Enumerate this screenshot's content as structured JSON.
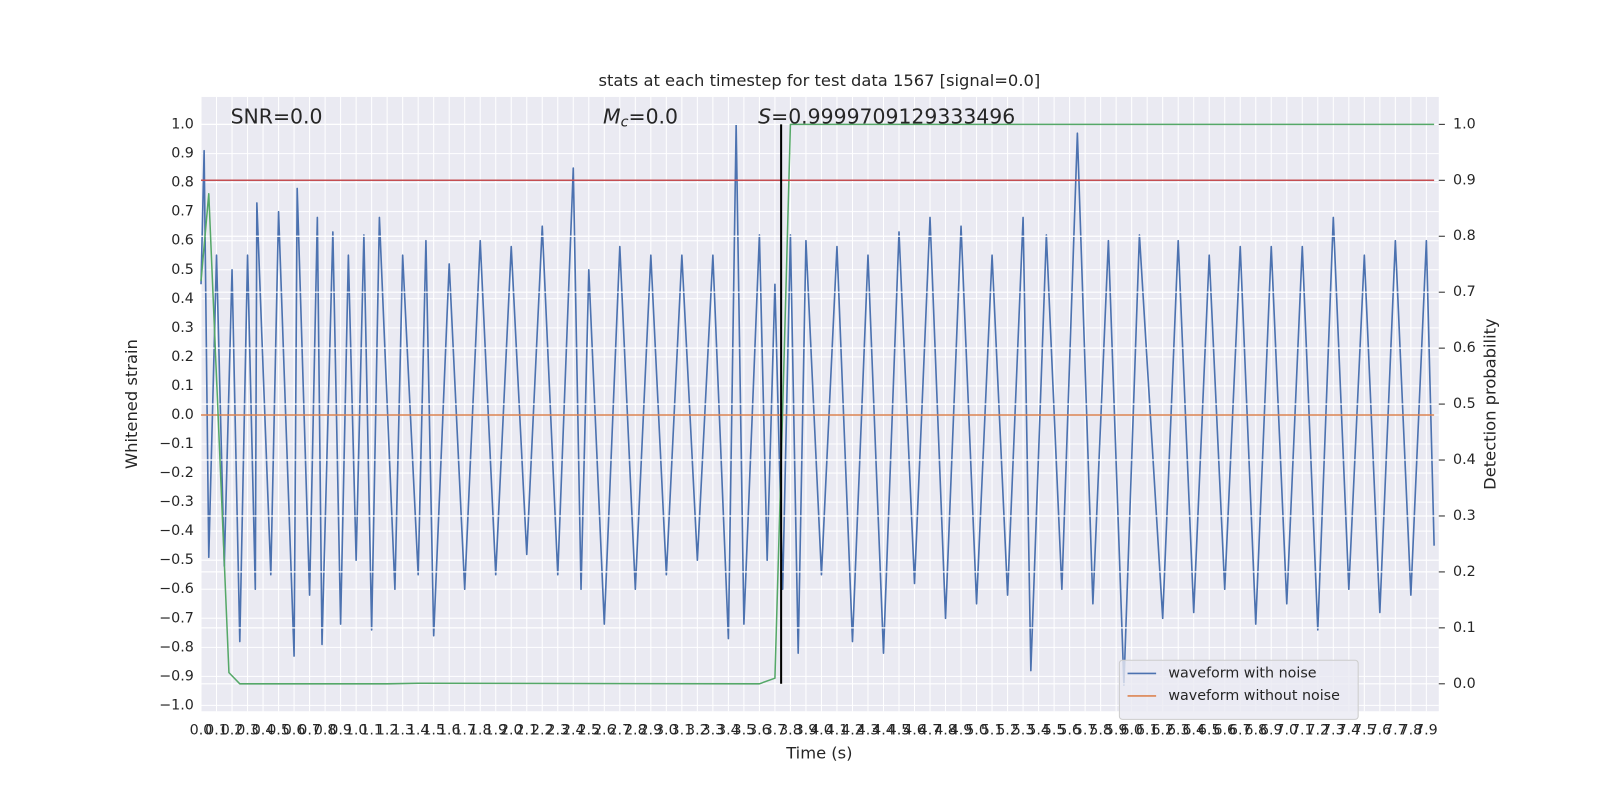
{
  "chart_data": {
    "type": "line",
    "title": "stats at each timestep for test data 1567 [signal=0.0]",
    "xlabel": "Time (s)",
    "ylabel": "Whitened strain",
    "y2label": "Detection probability",
    "annotations": [
      {
        "text": "SNR=0.0"
      },
      {
        "symbol": "M",
        "sub": "c",
        "text": "=0.0"
      },
      {
        "symbol": "S",
        "text": "=0.9999709129333496"
      }
    ],
    "xlim": [
      0,
      7.98
    ],
    "ylim": [
      -1.02,
      1.095
    ],
    "y2lim": [
      -0.049,
      1.049
    ],
    "xticks": [
      {
        "value": 0,
        "label": "0.0"
      },
      {
        "value": 0.1,
        "label": "0.1"
      },
      {
        "value": 0.2,
        "label": "0.2"
      },
      {
        "value": 0.3,
        "label": "0.3"
      },
      {
        "value": 0.4,
        "label": "0.4"
      },
      {
        "value": 0.5,
        "label": "0.5"
      },
      {
        "value": 0.6,
        "label": "0.6"
      },
      {
        "value": 0.7,
        "label": "0.7"
      },
      {
        "value": 0.8,
        "label": "0.8"
      },
      {
        "value": 0.9,
        "label": "0.9"
      },
      {
        "value": 1,
        "label": "1.0"
      },
      {
        "value": 1.1,
        "label": "1.1"
      },
      {
        "value": 1.2,
        "label": "1.2"
      },
      {
        "value": 1.3,
        "label": "1.3"
      },
      {
        "value": 1.4,
        "label": "1.4"
      },
      {
        "value": 1.5,
        "label": "1.5"
      },
      {
        "value": 1.6,
        "label": "1.6"
      },
      {
        "value": 1.7,
        "label": "1.7"
      },
      {
        "value": 1.8,
        "label": "1.8"
      },
      {
        "value": 1.9,
        "label": "1.9"
      },
      {
        "value": 2,
        "label": "2.0"
      },
      {
        "value": 2.1,
        "label": "2.1"
      },
      {
        "value": 2.2,
        "label": "2.2"
      },
      {
        "value": 2.3,
        "label": "2.3"
      },
      {
        "value": 2.4,
        "label": "2.4"
      },
      {
        "value": 2.5,
        "label": "2.5"
      },
      {
        "value": 2.6,
        "label": "2.6"
      },
      {
        "value": 2.7,
        "label": "2.7"
      },
      {
        "value": 2.8,
        "label": "2.8"
      },
      {
        "value": 2.9,
        "label": "2.9"
      },
      {
        "value": 3,
        "label": "3.0"
      },
      {
        "value": 3.1,
        "label": "3.1"
      },
      {
        "value": 3.2,
        "label": "3.2"
      },
      {
        "value": 3.3,
        "label": "3.3"
      },
      {
        "value": 3.4,
        "label": "3.4"
      },
      {
        "value": 3.5,
        "label": "3.5"
      },
      {
        "value": 3.6,
        "label": "3.6"
      },
      {
        "value": 3.7,
        "label": "3.7"
      },
      {
        "value": 3.8,
        "label": "3.8"
      },
      {
        "value": 3.9,
        "label": "3.9"
      },
      {
        "value": 4,
        "label": "4.0"
      },
      {
        "value": 4.1,
        "label": "4.1"
      },
      {
        "value": 4.2,
        "label": "4.2"
      },
      {
        "value": 4.3,
        "label": "4.3"
      },
      {
        "value": 4.4,
        "label": "4.4"
      },
      {
        "value": 4.5,
        "label": "4.5"
      },
      {
        "value": 4.6,
        "label": "4.6"
      },
      {
        "value": 4.7,
        "label": "4.7"
      },
      {
        "value": 4.8,
        "label": "4.8"
      },
      {
        "value": 4.9,
        "label": "4.9"
      },
      {
        "value": 5,
        "label": "5.0"
      },
      {
        "value": 5.1,
        "label": "5.1"
      },
      {
        "value": 5.2,
        "label": "5.2"
      },
      {
        "value": 5.3,
        "label": "5.3"
      },
      {
        "value": 5.4,
        "label": "5.4"
      },
      {
        "value": 5.5,
        "label": "5.5"
      },
      {
        "value": 5.6,
        "label": "5.6"
      },
      {
        "value": 5.7,
        "label": "5.7"
      },
      {
        "value": 5.8,
        "label": "5.8"
      },
      {
        "value": 5.9,
        "label": "5.9"
      },
      {
        "value": 6,
        "label": "6.0"
      },
      {
        "value": 6.1,
        "label": "6.1"
      },
      {
        "value": 6.2,
        "label": "6.2"
      },
      {
        "value": 6.3,
        "label": "6.3"
      },
      {
        "value": 6.4,
        "label": "6.4"
      },
      {
        "value": 6.5,
        "label": "6.5"
      },
      {
        "value": 6.6,
        "label": "6.6"
      },
      {
        "value": 6.7,
        "label": "6.7"
      },
      {
        "value": 6.8,
        "label": "6.8"
      },
      {
        "value": 6.9,
        "label": "6.9"
      },
      {
        "value": 7,
        "label": "7.0"
      },
      {
        "value": 7.1,
        "label": "7.1"
      },
      {
        "value": 7.2,
        "label": "7.2"
      },
      {
        "value": 7.3,
        "label": "7.3"
      },
      {
        "value": 7.4,
        "label": "7.4"
      },
      {
        "value": 7.5,
        "label": "7.5"
      },
      {
        "value": 7.6,
        "label": "7.6"
      },
      {
        "value": 7.7,
        "label": "7.7"
      },
      {
        "value": 7.8,
        "label": "7.8"
      },
      {
        "value": 7.9,
        "label": "7.9"
      }
    ],
    "yticks": [
      {
        "value": -1,
        "label": "−1.0"
      },
      {
        "value": -0.9,
        "label": "−0.9"
      },
      {
        "value": -0.8,
        "label": "−0.8"
      },
      {
        "value": -0.7,
        "label": "−0.7"
      },
      {
        "value": -0.6,
        "label": "−0.6"
      },
      {
        "value": -0.5,
        "label": "−0.5"
      },
      {
        "value": -0.4,
        "label": "−0.4"
      },
      {
        "value": -0.3,
        "label": "−0.3"
      },
      {
        "value": -0.2,
        "label": "−0.2"
      },
      {
        "value": -0.1,
        "label": "−0.1"
      },
      {
        "value": 0,
        "label": "0.0"
      },
      {
        "value": 0.1,
        "label": "0.1"
      },
      {
        "value": 0.2,
        "label": "0.2"
      },
      {
        "value": 0.3,
        "label": "0.3"
      },
      {
        "value": 0.4,
        "label": "0.4"
      },
      {
        "value": 0.5,
        "label": "0.5"
      },
      {
        "value": 0.6,
        "label": "0.6"
      },
      {
        "value": 0.7,
        "label": "0.7"
      },
      {
        "value": 0.8,
        "label": "0.8"
      },
      {
        "value": 0.9,
        "label": "0.9"
      },
      {
        "value": 1,
        "label": "1.0"
      }
    ],
    "y2ticks": [
      {
        "value": 0,
        "label": "0.0"
      },
      {
        "value": 0.1,
        "label": "0.1"
      },
      {
        "value": 0.2,
        "label": "0.2"
      },
      {
        "value": 0.3,
        "label": "0.3"
      },
      {
        "value": 0.4,
        "label": "0.4"
      },
      {
        "value": 0.5,
        "label": "0.5"
      },
      {
        "value": 0.6,
        "label": "0.6"
      },
      {
        "value": 0.7,
        "label": "0.7"
      },
      {
        "value": 0.8,
        "label": "0.8"
      },
      {
        "value": 0.9,
        "label": "0.9"
      },
      {
        "value": 1,
        "label": "1.0"
      }
    ],
    "grid": true,
    "legend": "lower right",
    "series": [
      {
        "name": "waveform with noise",
        "color": "#4c72b0",
        "x": [
          0,
          0.02,
          0.05,
          0.1,
          0.15,
          0.2,
          0.25,
          0.3,
          0.35,
          0.36,
          0.45,
          0.5,
          0.6,
          0.62,
          0.7,
          0.75,
          0.78,
          0.85,
          0.9,
          0.95,
          1,
          1.05,
          1.1,
          1.15,
          1.25,
          1.3,
          1.4,
          1.45,
          1.5,
          1.6,
          1.7,
          1.8,
          1.9,
          2,
          2.1,
          2.2,
          2.3,
          2.4,
          2.45,
          2.5,
          2.6,
          2.7,
          2.8,
          2.9,
          3,
          3.1,
          3.2,
          3.3,
          3.4,
          3.45,
          3.5,
          3.6,
          3.65,
          3.7,
          3.75,
          3.8,
          3.85,
          3.9,
          4,
          4.1,
          4.2,
          4.3,
          4.4,
          4.5,
          4.6,
          4.7,
          4.8,
          4.9,
          5,
          5.1,
          5.2,
          5.3,
          5.35,
          5.45,
          5.55,
          5.65,
          5.75,
          5.85,
          5.95,
          6.05,
          6.2,
          6.3,
          6.4,
          6.5,
          6.6,
          6.7,
          6.8,
          6.9,
          7,
          7.1,
          7.2,
          7.3,
          7.4,
          7.5,
          7.6,
          7.7,
          7.8,
          7.9,
          7.95
        ],
        "values": [
          0.45,
          0.91,
          -0.49,
          0.55,
          -0.52,
          0.5,
          -0.78,
          0.55,
          -0.6,
          0.73,
          -0.55,
          0.7,
          -0.83,
          0.78,
          -0.62,
          0.68,
          -0.79,
          0.63,
          -0.72,
          0.55,
          -0.5,
          0.62,
          -0.74,
          0.68,
          -0.6,
          0.55,
          -0.55,
          0.6,
          -0.76,
          0.52,
          -0.6,
          0.6,
          -0.55,
          0.58,
          -0.48,
          0.65,
          -0.55,
          0.85,
          -0.6,
          0.5,
          -0.72,
          0.58,
          -0.6,
          0.55,
          -0.55,
          0.55,
          -0.5,
          0.55,
          -0.77,
          1.0,
          -0.72,
          0.62,
          -0.5,
          0.45,
          -0.6,
          0.62,
          -0.82,
          0.6,
          -0.55,
          0.58,
          -0.78,
          0.55,
          -0.82,
          0.63,
          -0.58,
          0.68,
          -0.7,
          0.65,
          -0.65,
          0.55,
          -0.62,
          0.68,
          -0.88,
          0.62,
          -0.6,
          0.97,
          -0.65,
          0.6,
          -0.93,
          0.62,
          -0.7,
          0.6,
          -0.68,
          0.55,
          -0.6,
          0.58,
          -0.72,
          0.58,
          -0.65,
          0.58,
          -0.74,
          0.68,
          -0.6,
          0.55,
          -0.68,
          0.6,
          -0.62,
          0.6,
          -0.45
        ]
      },
      {
        "name": "waveform without noise",
        "color": "#dd8452",
        "x": [
          0,
          7.95
        ],
        "values": [
          0,
          0
        ]
      },
      {
        "color": "#55a868",
        "axis": "y2",
        "x": [
          0,
          0.05,
          0.18,
          0.25,
          1.2,
          1.4,
          3.6,
          3.7,
          3.75,
          3.8,
          7.95
        ],
        "values": [
          0.72,
          0.876,
          0.02,
          0,
          0,
          0.001,
          0,
          0.01,
          0.49,
          1,
          1
        ]
      },
      {
        "color": "#c44e52",
        "axis": "y2",
        "x": [
          0,
          7.95
        ],
        "values": [
          0.9,
          0.9
        ]
      }
    ],
    "vlines": [
      {
        "x": 3.74,
        "color": "#000000"
      }
    ]
  }
}
